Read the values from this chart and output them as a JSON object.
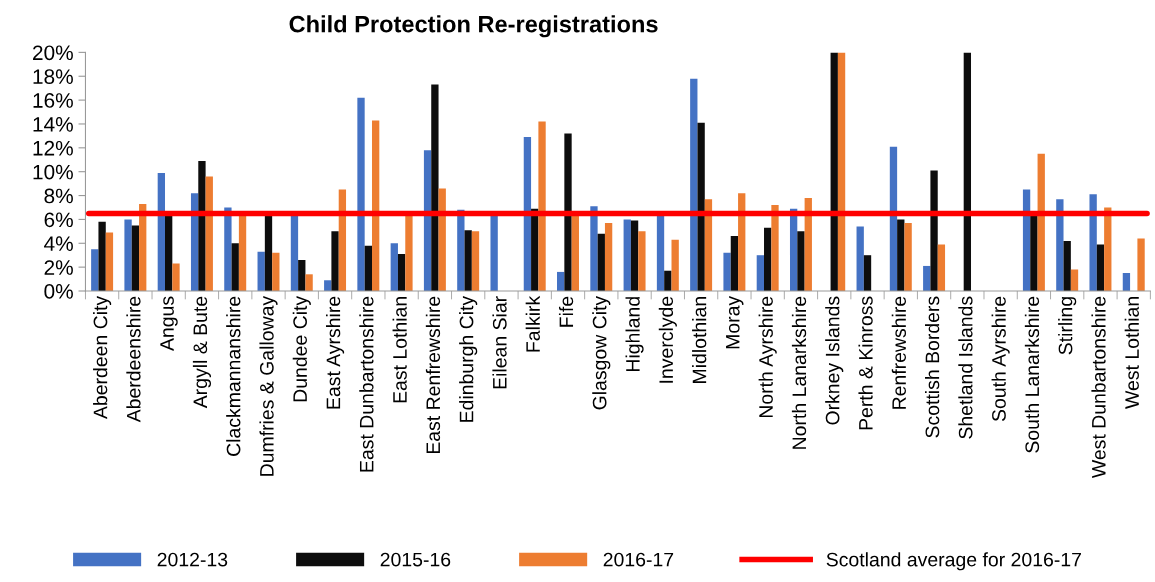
{
  "chart_data": {
    "type": "bar",
    "title": "Child Protection Re-registrations",
    "categories": [
      "Aberdeen City",
      "Aberdeenshire",
      "Angus",
      "Argyll & Bute",
      "Clackmannanshire",
      "Dumfries & Galloway",
      "Dundee City",
      "East Ayrshire",
      "East Dunbartonshire",
      "East Lothian",
      "East Renfrewshire",
      "Edinburgh City",
      "Eilean Siar",
      "Falkirk",
      "Fife",
      "Glasgow City",
      "Highland",
      "Inverclyde",
      "Midlothian",
      "Moray",
      "North Ayrshire",
      "North Lanarkshire",
      "Orkney Islands",
      "Perth & Kinross",
      "Renfrewshire",
      "Scottish Borders",
      "Shetland Islands",
      "South Ayrshire",
      "South Lanarkshire",
      "Stirling",
      "West Dunbartonshire",
      "West Lothian"
    ],
    "series": [
      {
        "name": "2012-13",
        "color": "#4472c4",
        "values": [
          3.5,
          6.0,
          9.9,
          8.2,
          7.0,
          3.3,
          6.4,
          0.9,
          16.2,
          4.0,
          11.8,
          6.8,
          6.4,
          12.9,
          1.6,
          7.1,
          6.0,
          6.4,
          17.8,
          3.2,
          3.0,
          6.9,
          null,
          5.4,
          12.1,
          2.1,
          null,
          null,
          8.5,
          7.7,
          8.1,
          1.5
        ]
      },
      {
        "name": "2015-16",
        "color": "#0d0d0d",
        "values": [
          5.8,
          5.5,
          6.4,
          10.9,
          4.0,
          6.4,
          2.6,
          5.0,
          3.8,
          3.1,
          17.3,
          5.1,
          null,
          6.9,
          13.2,
          4.8,
          5.9,
          1.7,
          14.1,
          4.6,
          5.3,
          5.0,
          20,
          3.0,
          6.0,
          10.1,
          20,
          null,
          6.4,
          4.2,
          3.9,
          null
        ]
      },
      {
        "name": "2016-17",
        "color": "#ed7d31",
        "values": [
          4.9,
          7.3,
          2.3,
          9.6,
          6.4,
          3.2,
          1.4,
          8.5,
          14.3,
          6.4,
          8.6,
          5.0,
          null,
          14.2,
          6.4,
          5.7,
          5.0,
          4.3,
          7.7,
          8.2,
          7.2,
          7.8,
          20,
          null,
          5.7,
          3.9,
          null,
          null,
          11.5,
          1.8,
          7.0,
          4.4
        ]
      }
    ],
    "ylim": [
      0,
      20
    ],
    "yticks": [
      {
        "value": 0,
        "label": "0%"
      },
      {
        "value": 2,
        "label": "2%"
      },
      {
        "value": 4,
        "label": "4%"
      },
      {
        "value": 6,
        "label": "6%"
      },
      {
        "value": 8,
        "label": "8%"
      },
      {
        "value": 10,
        "label": "10%"
      },
      {
        "value": 12,
        "label": "12%"
      },
      {
        "value": 14,
        "label": "14%"
      },
      {
        "value": 16,
        "label": "16%"
      },
      {
        "value": 18,
        "label": "18%"
      },
      {
        "value": 20,
        "label": "20%"
      }
    ],
    "ref_lines": [
      {
        "axis": "y",
        "value": 6.5,
        "label": "Scotland average for 2016-17",
        "color": "#ff0000"
      }
    ],
    "grid": false,
    "legend": "bottom"
  }
}
